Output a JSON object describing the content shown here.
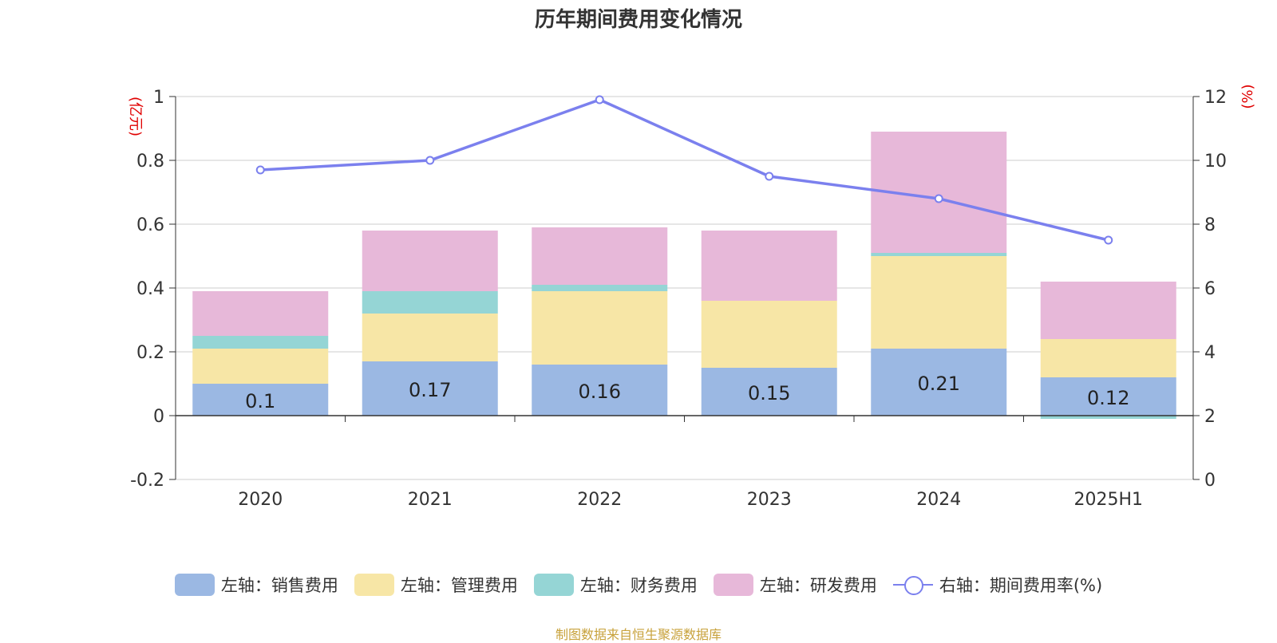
{
  "chart_data": {
    "type": "bar",
    "stacked": true,
    "title": "历年期间费用变化情况",
    "categories": [
      "2020",
      "2021",
      "2022",
      "2023",
      "2024",
      "2025H1"
    ],
    "y_left": {
      "unit": "(亿元)",
      "range": [
        -0.2,
        1
      ],
      "ticks": [
        "-0.2",
        "0",
        "0.2",
        "0.4",
        "0.6",
        "0.8",
        "1"
      ]
    },
    "y_right": {
      "unit": "(%)",
      "range": [
        0,
        12
      ],
      "ticks": [
        "0",
        "2",
        "4",
        "6",
        "8",
        "10",
        "12"
      ]
    },
    "series": [
      {
        "name": "左轴：销售费用",
        "axis": "left",
        "type": "bar",
        "color": "#9BB8E3",
        "values": [
          0.1,
          0.17,
          0.16,
          0.15,
          0.21,
          0.12
        ],
        "labels": [
          "0.1",
          "0.17",
          "0.16",
          "0.15",
          "0.21",
          "0.12"
        ]
      },
      {
        "name": "左轴：管理费用",
        "axis": "left",
        "type": "bar",
        "color": "#F7E6A6",
        "values": [
          0.11,
          0.15,
          0.23,
          0.21,
          0.29,
          0.12
        ]
      },
      {
        "name": "左轴：财务费用",
        "axis": "left",
        "type": "bar",
        "color": "#95D5D5",
        "values": [
          0.04,
          0.07,
          0.02,
          0.0,
          0.01,
          -0.01
        ]
      },
      {
        "name": "左轴：研发费用",
        "axis": "left",
        "type": "bar",
        "color": "#E7B8D9",
        "values": [
          0.14,
          0.19,
          0.18,
          0.22,
          0.38,
          0.18
        ]
      },
      {
        "name": "右轴：期间费用率(%)",
        "axis": "right",
        "type": "line",
        "color": "#7B80EE",
        "values": [
          9.7,
          10.0,
          11.9,
          9.5,
          8.8,
          7.5
        ]
      }
    ],
    "grid": true,
    "legend_position": "bottom"
  },
  "footer": {
    "source": "制图数据来自恒生聚源数据库"
  }
}
